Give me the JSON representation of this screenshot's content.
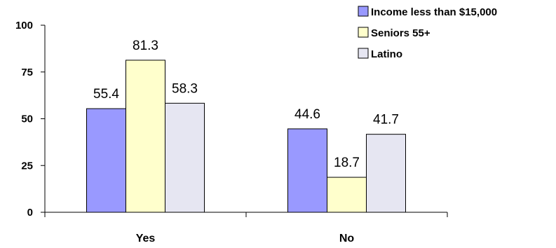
{
  "chart_data": {
    "type": "bar",
    "categories": [
      "Yes",
      "No"
    ],
    "series": [
      {
        "name": "Income less than $15,000",
        "values": [
          55.4,
          44.6
        ],
        "color": "#9999ff"
      },
      {
        "name": "Seniors 55+",
        "values": [
          81.3,
          18.7
        ],
        "color": "#ffffcc"
      },
      {
        "name": "Latino",
        "values": [
          58.3,
          41.7
        ],
        "color": "#e6e6f2"
      }
    ],
    "ylim": [
      0,
      100
    ],
    "yticks": [
      0,
      25,
      50,
      75,
      100
    ],
    "grid": false,
    "legend_position": "top-right",
    "title": "",
    "xlabel": "",
    "ylabel": ""
  }
}
